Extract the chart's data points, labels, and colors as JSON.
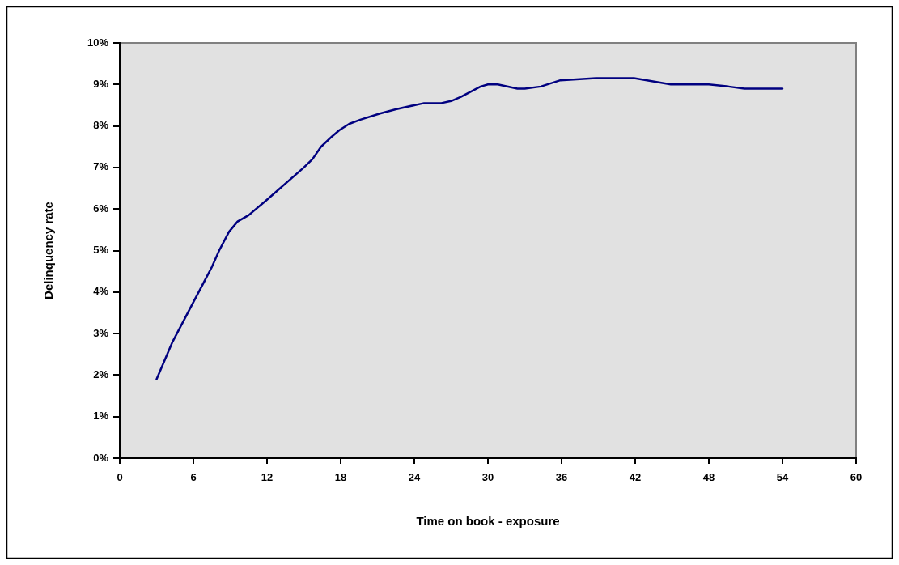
{
  "chart_data": {
    "type": "line",
    "xlabel": "Time on book - exposure",
    "ylabel": "Delinquency rate",
    "xlim": [
      0,
      60
    ],
    "xticks": [
      0,
      6,
      12,
      18,
      24,
      30,
      36,
      42,
      48,
      54,
      60
    ],
    "ylim": [
      0,
      10
    ],
    "yticks": [
      {
        "value": 0,
        "label": "0%"
      },
      {
        "value": 1,
        "label": "1%"
      },
      {
        "value": 2,
        "label": "2%"
      },
      {
        "value": 3,
        "label": "3%"
      },
      {
        "value": 4,
        "label": "4%"
      },
      {
        "value": 5,
        "label": "5%"
      },
      {
        "value": 6,
        "label": "6%"
      },
      {
        "value": 7,
        "label": "7%"
      },
      {
        "value": 8,
        "label": "8%"
      },
      {
        "value": 9,
        "label": "9%"
      },
      {
        "value": 10,
        "label": "10%"
      }
    ],
    "legend": false,
    "marker": "none",
    "line_style": "solid",
    "series": [
      {
        "color": "#000080",
        "x": [
          3,
          4.3,
          5.9,
          7.5,
          8.1,
          8.9,
          9.6,
          10.5,
          11.9,
          15,
          15.7,
          16.4,
          17.3,
          17.9,
          18.7,
          19.6,
          21.2,
          22.5,
          24,
          24.8,
          26.2,
          27,
          27.8,
          29.4,
          30,
          30.8,
          32.4,
          33,
          34.3,
          35.9,
          38.8,
          41.9,
          44.9,
          48,
          49.6,
          50.9,
          54
        ],
        "values": [
          1.9,
          2.8,
          3.7,
          4.6,
          5.0,
          5.45,
          5.7,
          5.85,
          6.2,
          7.0,
          7.2,
          7.5,
          7.75,
          7.9,
          8.05,
          8.15,
          8.3,
          8.4,
          8.5,
          8.55,
          8.55,
          8.6,
          8.7,
          8.95,
          9.0,
          9.0,
          8.9,
          8.9,
          8.95,
          9.1,
          9.15,
          9.15,
          9.0,
          9.0,
          8.95,
          8.9,
          8.9
        ]
      }
    ]
  }
}
